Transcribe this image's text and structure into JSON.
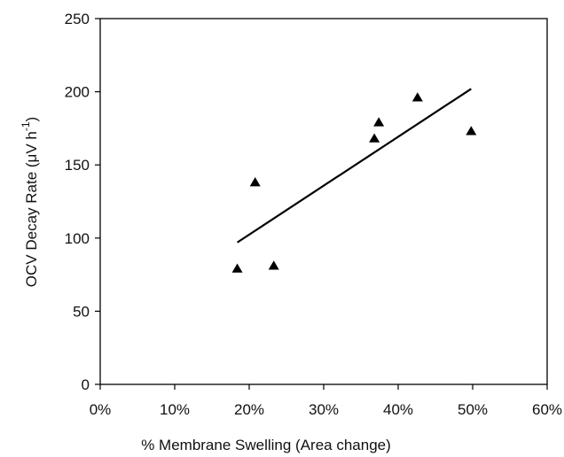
{
  "chart_data": {
    "type": "scatter",
    "title": "",
    "xlabel": "% Membrane Swelling (Area change)",
    "ylabel": {
      "prefix": "OCV Decay Rate (",
      "mu": "μ",
      "unit": "V h",
      "sup": "-1",
      "suffix": ")"
    },
    "xlim": [
      0,
      0.6
    ],
    "ylim": [
      0,
      250
    ],
    "x_ticks": [
      0,
      0.1,
      0.2,
      0.3,
      0.4,
      0.5,
      0.6
    ],
    "x_tick_labels": [
      "0%",
      "10%",
      "20%",
      "30%",
      "40%",
      "50%",
      "60%"
    ],
    "y_ticks": [
      0,
      50,
      100,
      150,
      200,
      250
    ],
    "y_tick_labels": [
      "0",
      "50",
      "100",
      "150",
      "200",
      "250"
    ],
    "grid": false,
    "legend": null,
    "series": [
      {
        "marker": "triangle",
        "color": "#000000",
        "points": [
          {
            "x": 0.184,
            "y": 79
          },
          {
            "x": 0.208,
            "y": 138
          },
          {
            "x": 0.233,
            "y": 81
          },
          {
            "x": 0.368,
            "y": 168
          },
          {
            "x": 0.374,
            "y": 179
          },
          {
            "x": 0.426,
            "y": 196
          },
          {
            "x": 0.498,
            "y": 173
          }
        ]
      }
    ],
    "trendline": {
      "type": "linear",
      "color": "#000000",
      "x": [
        0.184,
        0.498
      ],
      "y": [
        97,
        202
      ]
    }
  }
}
